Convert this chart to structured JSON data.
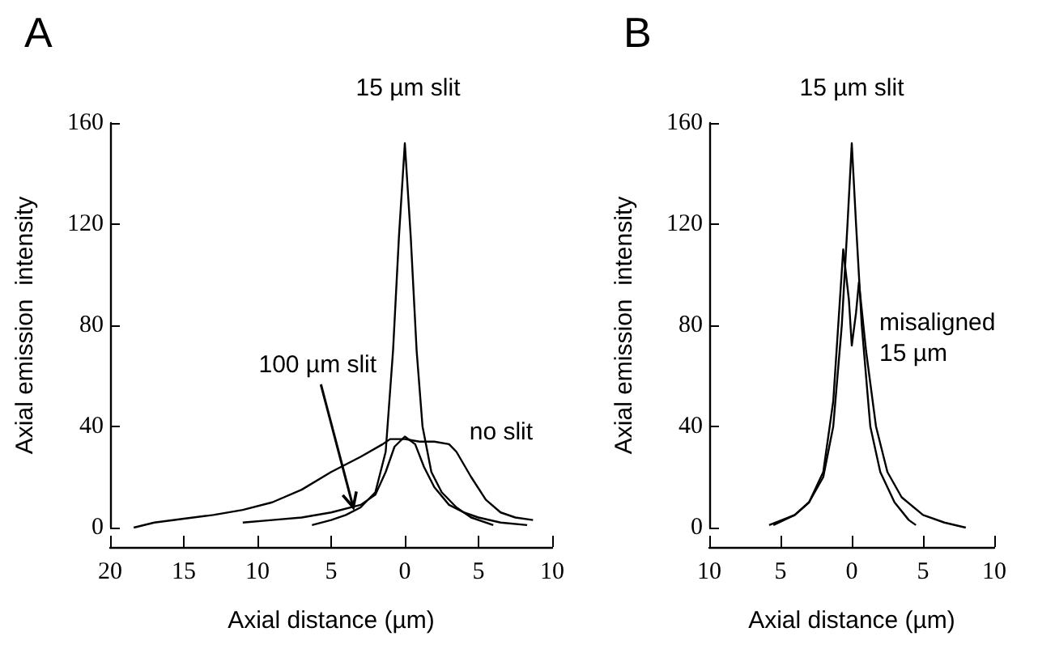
{
  "chart_data": [
    {
      "type": "line",
      "title": "A",
      "xlabel": "Axial distance (µm)",
      "ylabel": "Axial emission  intensity",
      "xlim": [
        -20,
        10
      ],
      "xticks": [
        {
          "value": -20,
          "label": "20"
        },
        {
          "value": -15,
          "label": "15"
        },
        {
          "value": -10,
          "label": "10"
        },
        {
          "value": -5,
          "label": "5"
        },
        0,
        5,
        10
      ],
      "ylim": [
        0,
        160
      ],
      "yticks": [
        0,
        40,
        80,
        120,
        160
      ],
      "grid": false,
      "marker": "none",
      "line_style": "solid",
      "series": [
        {
          "color": "#000000",
          "x": [
            -18.4,
            -17,
            -15,
            -13,
            -11,
            -9,
            -7,
            -5,
            -3,
            -1.5,
            -1,
            0,
            1,
            2,
            3,
            3.5,
            4.5,
            5.5,
            6.5,
            7.5,
            8.7
          ],
          "values": [
            0,
            2,
            3.5,
            5,
            7,
            10,
            15,
            22,
            28,
            33,
            35,
            35,
            34,
            34,
            33,
            30,
            20,
            11,
            6,
            4,
            3
          ]
        },
        {
          "color": "#000000",
          "x": [
            -6.3,
            -5,
            -4,
            -3,
            -2,
            -1.3,
            -0.8,
            -0.4,
            0,
            0.4,
            0.8,
            1.2,
            1.8,
            2.5,
            3.5,
            4.5,
            6
          ],
          "values": [
            1,
            3,
            5,
            8,
            14,
            30,
            70,
            115,
            152,
            115,
            70,
            40,
            22,
            14,
            8,
            4,
            1
          ]
        },
        {
          "color": "#000000",
          "x": [
            -11,
            -9,
            -7,
            -5,
            -3,
            -2,
            -1.3,
            -0.7,
            0,
            0.7,
            1.3,
            2,
            3,
            4,
            5,
            6.5,
            8.3
          ],
          "values": [
            2,
            3,
            4,
            6,
            9,
            13,
            22,
            32,
            36,
            33,
            24,
            16,
            9,
            6,
            4,
            2,
            1
          ]
        }
      ],
      "annotations": [
        "15 µm slit",
        {
          "text": "100 µm slit",
          "x": -3.5,
          "y": 8
        },
        {
          "text": "no slit",
          "x": 3.5,
          "y": 34
        }
      ]
    },
    {
      "type": "line",
      "title": "B",
      "xlabel": "Axial distance (µm)",
      "ylabel": "Axial emission  intensity",
      "xlim": [
        -10,
        10
      ],
      "xticks": [
        {
          "value": -10,
          "label": "10"
        },
        {
          "value": -5,
          "label": "5"
        },
        0,
        5,
        10
      ],
      "ylim": [
        0,
        160
      ],
      "yticks": [
        0,
        40,
        80,
        120,
        160
      ],
      "grid": false,
      "marker": "none",
      "line_style": "solid",
      "series": [
        {
          "color": "#000000",
          "x": [
            -5.5,
            -4,
            -3,
            -2,
            -1.3,
            -0.7,
            -0.3,
            0,
            0.3,
            0.7,
            1.3,
            2,
            3,
            4,
            4.5
          ],
          "values": [
            1,
            5,
            10,
            20,
            40,
            80,
            120,
            152,
            120,
            80,
            40,
            22,
            10,
            3,
            1
          ]
        },
        {
          "color": "#000000",
          "x": [
            -5.8,
            -4,
            -3,
            -2,
            -1.3,
            -0.6,
            -0.2,
            0,
            0.3,
            0.5,
            1,
            1.7,
            2.5,
            3.5,
            5,
            6.5,
            8
          ],
          "values": [
            1,
            5,
            10,
            22,
            50,
            110,
            90,
            72,
            85,
            97,
            70,
            40,
            22,
            12,
            5,
            2,
            0
          ]
        }
      ],
      "annotations": [
        "15 µm slit",
        {
          "text": "misaligned 15 µm",
          "x": 0.8,
          "y": 75
        }
      ]
    }
  ]
}
